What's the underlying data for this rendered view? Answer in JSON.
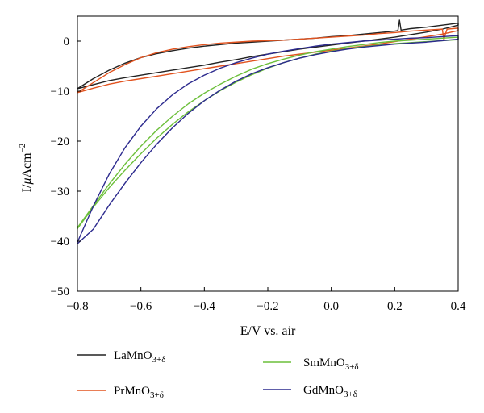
{
  "chart_data": {
    "type": "line",
    "title": "",
    "xlabel": "E/V vs. air",
    "ylabel": "I/μAcm⁻²",
    "ylabel_parts": {
      "base": "I/",
      "mu": "μ",
      "unit": "Acm",
      "exp": "−2"
    },
    "xlim": [
      -0.8,
      0.4
    ],
    "ylim": [
      -50,
      5
    ],
    "xticks": [
      -0.8,
      -0.6,
      -0.4,
      -0.2,
      0.0,
      0.2,
      0.4
    ],
    "xtick_labels": [
      "−0.8",
      "−0.6",
      "−0.4",
      "−0.2",
      "0.0",
      "0.2",
      "0.4"
    ],
    "yticks": [
      0,
      -10,
      -20,
      -30,
      -40,
      -50
    ],
    "ytick_labels": [
      "0",
      "−10",
      "−20",
      "−30",
      "−40",
      "−50"
    ],
    "grid": false,
    "legend_position": "bottom",
    "series": [
      {
        "name": "LaMnO3+δ",
        "name_parts": {
          "base": "LaMnO",
          "sub": "3+δ"
        },
        "color": "#222222",
        "x": [
          -0.8,
          -0.75,
          -0.7,
          -0.65,
          -0.6,
          -0.55,
          -0.5,
          -0.45,
          -0.4,
          -0.35,
          -0.3,
          -0.25,
          -0.2,
          -0.15,
          -0.1,
          -0.05,
          0.0,
          0.05,
          0.1,
          0.15,
          0.2,
          0.21,
          0.215,
          0.22,
          0.25,
          0.3,
          0.35,
          0.4,
          0.4,
          0.35,
          0.3,
          0.25,
          0.2,
          0.15,
          0.1,
          0.05,
          0.0,
          -0.05,
          -0.1,
          -0.15,
          -0.2,
          -0.25,
          -0.3,
          -0.35,
          -0.4,
          -0.45,
          -0.5,
          -0.55,
          -0.6,
          -0.65,
          -0.7,
          -0.75,
          -0.8
        ],
        "y": [
          -9.5,
          -7.5,
          -5.8,
          -4.4,
          -3.3,
          -2.5,
          -1.9,
          -1.4,
          -1.0,
          -0.7,
          -0.4,
          -0.2,
          0.0,
          0.2,
          0.4,
          0.6,
          0.9,
          1.1,
          1.4,
          1.7,
          2.0,
          2.1,
          4.2,
          2.2,
          2.5,
          2.8,
          3.2,
          3.6,
          3.2,
          2.4,
          1.8,
          1.3,
          0.8,
          0.4,
          0.0,
          -0.4,
          -0.8,
          -1.2,
          -1.6,
          -2.1,
          -2.6,
          -3.1,
          -3.7,
          -4.2,
          -4.8,
          -5.3,
          -5.8,
          -6.3,
          -6.8,
          -7.3,
          -7.9,
          -8.7,
          -9.5
        ]
      },
      {
        "name": "PrMnO3+δ",
        "name_parts": {
          "base": "PrMnO",
          "sub": "3+δ"
        },
        "color": "#e2531f",
        "x": [
          -0.8,
          -0.75,
          -0.7,
          -0.65,
          -0.6,
          -0.55,
          -0.5,
          -0.45,
          -0.4,
          -0.35,
          -0.3,
          -0.25,
          -0.2,
          -0.15,
          -0.1,
          -0.05,
          0.0,
          0.05,
          0.1,
          0.15,
          0.2,
          0.25,
          0.3,
          0.35,
          0.355,
          0.36,
          0.365,
          0.4,
          0.4,
          0.35,
          0.3,
          0.25,
          0.2,
          0.15,
          0.1,
          0.05,
          0.0,
          -0.05,
          -0.1,
          -0.15,
          -0.2,
          -0.25,
          -0.3,
          -0.35,
          -0.4,
          -0.45,
          -0.5,
          -0.55,
          -0.6,
          -0.65,
          -0.7,
          -0.75,
          -0.8
        ],
        "y": [
          -10.3,
          -8.3,
          -6.3,
          -4.7,
          -3.3,
          -2.3,
          -1.6,
          -1.1,
          -0.7,
          -0.4,
          -0.2,
          0.0,
          0.1,
          0.2,
          0.4,
          0.6,
          0.8,
          1.0,
          1.2,
          1.5,
          1.7,
          2.0,
          2.2,
          2.4,
          0.2,
          1.5,
          2.4,
          2.6,
          2.1,
          1.4,
          0.9,
          0.4,
          -0.1,
          -0.6,
          -1.0,
          -1.4,
          -1.8,
          -2.2,
          -2.6,
          -3.0,
          -3.5,
          -4.0,
          -4.5,
          -5.0,
          -5.5,
          -6.0,
          -6.5,
          -7.0,
          -7.5,
          -8.0,
          -8.6,
          -9.4,
          -10.3
        ]
      },
      {
        "name": "SmMnO3+δ",
        "name_parts": {
          "base": "SmMnO",
          "sub": "3+δ"
        },
        "color": "#6cbf3a",
        "x": [
          -0.8,
          -0.75,
          -0.7,
          -0.65,
          -0.6,
          -0.55,
          -0.5,
          -0.45,
          -0.4,
          -0.35,
          -0.3,
          -0.25,
          -0.2,
          -0.15,
          -0.1,
          -0.05,
          0.0,
          0.05,
          0.1,
          0.15,
          0.2,
          0.25,
          0.3,
          0.35,
          0.4,
          0.4,
          0.35,
          0.3,
          0.25,
          0.2,
          0.15,
          0.1,
          0.05,
          0.0,
          -0.05,
          -0.1,
          -0.15,
          -0.2,
          -0.25,
          -0.3,
          -0.35,
          -0.4,
          -0.45,
          -0.5,
          -0.55,
          -0.6,
          -0.65,
          -0.7,
          -0.75,
          -0.8
        ],
        "y": [
          -37.3,
          -32.9,
          -28.6,
          -24.6,
          -21.0,
          -17.8,
          -15.0,
          -12.5,
          -10.4,
          -8.6,
          -7.0,
          -5.6,
          -4.5,
          -3.6,
          -2.8,
          -2.1,
          -1.6,
          -1.1,
          -0.7,
          -0.3,
          0.0,
          0.2,
          0.4,
          0.6,
          0.8,
          0.3,
          0.1,
          -0.1,
          -0.3,
          -0.5,
          -0.8,
          -1.1,
          -1.5,
          -2.0,
          -2.6,
          -3.4,
          -4.3,
          -5.4,
          -6.7,
          -8.2,
          -9.9,
          -11.9,
          -14.1,
          -16.6,
          -19.4,
          -22.5,
          -25.8,
          -29.3,
          -33.2,
          -37.5
        ]
      },
      {
        "name": "GdMnO3+δ",
        "name_parts": {
          "base": "GdMnO",
          "sub": "3+δ"
        },
        "color": "#2c2a8e",
        "x": [
          -0.8,
          -0.75,
          -0.7,
          -0.65,
          -0.6,
          -0.55,
          -0.5,
          -0.45,
          -0.4,
          -0.35,
          -0.3,
          -0.25,
          -0.2,
          -0.15,
          -0.1,
          -0.05,
          0.0,
          0.05,
          0.1,
          0.15,
          0.2,
          0.25,
          0.3,
          0.35,
          0.4,
          0.4,
          0.35,
          0.3,
          0.25,
          0.2,
          0.15,
          0.1,
          0.05,
          0.0,
          -0.05,
          -0.1,
          -0.15,
          -0.2,
          -0.25,
          -0.3,
          -0.35,
          -0.4,
          -0.45,
          -0.5,
          -0.55,
          -0.6,
          -0.65,
          -0.7,
          -0.75,
          -0.8
        ],
        "y": [
          -40.2,
          -33.0,
          -26.6,
          -21.3,
          -17.0,
          -13.5,
          -10.7,
          -8.5,
          -6.8,
          -5.4,
          -4.3,
          -3.4,
          -2.6,
          -2.0,
          -1.5,
          -1.0,
          -0.6,
          -0.3,
          0.0,
          0.2,
          0.4,
          0.6,
          0.7,
          0.9,
          1.1,
          0.4,
          0.1,
          -0.2,
          -0.4,
          -0.6,
          -0.9,
          -1.2,
          -1.6,
          -2.1,
          -2.7,
          -3.4,
          -4.3,
          -5.3,
          -6.5,
          -8.0,
          -9.8,
          -11.9,
          -14.4,
          -17.3,
          -20.6,
          -24.3,
          -28.4,
          -32.8,
          -37.6,
          -40.5
        ]
      }
    ]
  }
}
